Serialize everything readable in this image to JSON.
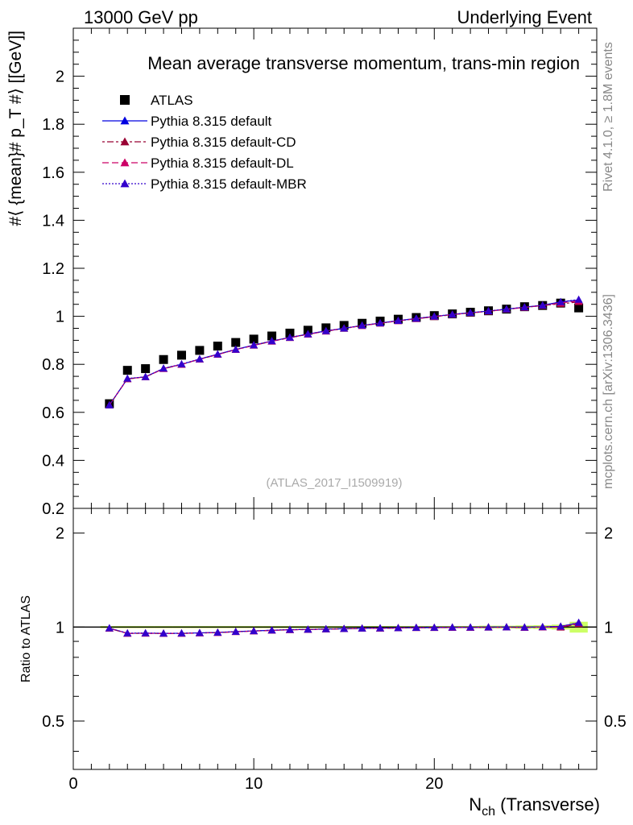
{
  "header": {
    "left_label": "13000 GeV pp",
    "right_label": "Underlying Event"
  },
  "side_labels": {
    "rivet": "Rivet 4.1.0, ≥ 1.8M events",
    "mcplots": "mcplots.cern.ch [arXiv:1306.3436]"
  },
  "chart_data": [
    {
      "type": "line",
      "panel": "main",
      "title": "Mean average transverse momentum, trans-min region",
      "watermark": "(ATLAS_2017_I1509919)",
      "ylabel": "#⟨ {mean}# p_T #⟩ [[GeV]]",
      "ylim": [
        0.2,
        2.2
      ],
      "xlim": [
        0,
        29
      ],
      "yticks": [
        "0.2",
        "0.4",
        "0.6",
        "0.8",
        "1",
        "1.2",
        "1.4",
        "1.6",
        "1.8",
        "2"
      ],
      "x": [
        2,
        3,
        4,
        5,
        6,
        7,
        8,
        9,
        10,
        11,
        12,
        13,
        14,
        15,
        16,
        17,
        18,
        19,
        20,
        21,
        22,
        23,
        24,
        25,
        26,
        27,
        28
      ],
      "series": [
        {
          "name": "ATLAS",
          "color": "#000000",
          "marker": "square",
          "values": [
            0.636,
            0.775,
            0.782,
            0.82,
            0.838,
            0.858,
            0.876,
            0.891,
            0.905,
            0.918,
            0.93,
            0.942,
            0.952,
            0.962,
            0.971,
            0.98,
            0.988,
            0.995,
            1.003,
            1.01,
            1.017,
            1.023,
            1.03,
            1.04,
            1.045,
            1.055,
            1.035
          ]
        },
        {
          "name": "Pythia 8.315 default",
          "color": "#0000e0",
          "marker": "triangle",
          "dash": "",
          "values": [
            0.63,
            0.74,
            0.748,
            0.783,
            0.8,
            0.822,
            0.842,
            0.862,
            0.88,
            0.897,
            0.912,
            0.926,
            0.939,
            0.95,
            0.962,
            0.972,
            0.982,
            0.991,
            0.999,
            1.008,
            1.015,
            1.022,
            1.03,
            1.038,
            1.046,
            1.06,
            1.068
          ]
        },
        {
          "name": "Pythia 8.315 default-CD",
          "color": "#990033",
          "marker": "triangle",
          "dash": "3,3,8,3",
          "values": [
            0.63,
            0.739,
            0.747,
            0.782,
            0.799,
            0.821,
            0.841,
            0.861,
            0.879,
            0.896,
            0.911,
            0.925,
            0.938,
            0.949,
            0.961,
            0.971,
            0.981,
            0.99,
            0.998,
            1.007,
            1.014,
            1.021,
            1.029,
            1.037,
            1.045,
            1.052,
            1.06
          ]
        },
        {
          "name": "Pythia 8.315 default-DL",
          "color": "#cc0066",
          "marker": "triangle",
          "dash": "8,4",
          "values": [
            0.63,
            0.74,
            0.747,
            0.782,
            0.8,
            0.821,
            0.841,
            0.861,
            0.879,
            0.896,
            0.911,
            0.925,
            0.938,
            0.95,
            0.961,
            0.971,
            0.981,
            0.99,
            0.999,
            1.007,
            1.014,
            1.021,
            1.029,
            1.037,
            1.045,
            1.056,
            1.064
          ]
        },
        {
          "name": "Pythia 8.315 default-MBR",
          "color": "#3300cc",
          "marker": "triangle",
          "dash": "2,2",
          "values": [
            0.63,
            0.741,
            0.748,
            0.783,
            0.801,
            0.822,
            0.842,
            0.862,
            0.88,
            0.897,
            0.912,
            0.926,
            0.939,
            0.95,
            0.962,
            0.972,
            0.982,
            0.991,
            1.0,
            1.008,
            1.015,
            1.022,
            1.03,
            1.038,
            1.046,
            1.06,
            1.07
          ]
        }
      ]
    },
    {
      "type": "line",
      "panel": "ratio",
      "ylabel": "Ratio to ATLAS",
      "xlabel": "N_ch (Transverse)",
      "ylim": [
        0.35,
        2.4
      ],
      "yscale": "log",
      "xlim": [
        0,
        29
      ],
      "yticks": [
        "0.5",
        "1",
        "2"
      ],
      "xticks": [
        "0",
        "10",
        "20"
      ],
      "band_color": "#ccff66",
      "x": [
        2,
        3,
        4,
        5,
        6,
        7,
        8,
        9,
        10,
        11,
        12,
        13,
        14,
        15,
        16,
        17,
        18,
        19,
        20,
        21,
        22,
        23,
        24,
        25,
        26,
        27,
        28
      ],
      "band_halfwidth": [
        0.008,
        0.008,
        0.008,
        0.008,
        0.008,
        0.008,
        0.008,
        0.008,
        0.008,
        0.008,
        0.008,
        0.008,
        0.008,
        0.008,
        0.008,
        0.008,
        0.008,
        0.008,
        0.008,
        0.008,
        0.008,
        0.01,
        0.01,
        0.012,
        0.014,
        0.018,
        0.04
      ],
      "series": [
        {
          "name": "Pythia 8.315 default",
          "color": "#0000e0",
          "dash": "",
          "values": [
            0.992,
            0.955,
            0.956,
            0.955,
            0.955,
            0.958,
            0.961,
            0.967,
            0.972,
            0.977,
            0.981,
            0.983,
            0.986,
            0.988,
            0.991,
            0.992,
            0.994,
            0.996,
            0.996,
            0.998,
            0.998,
            0.999,
            1.0,
            0.998,
            1.001,
            1.005,
            1.032
          ]
        },
        {
          "name": "Pythia 8.315 default-CD",
          "color": "#990033",
          "dash": "3,3,8,3",
          "values": [
            0.99,
            0.954,
            0.955,
            0.954,
            0.954,
            0.957,
            0.96,
            0.966,
            0.971,
            0.976,
            0.98,
            0.982,
            0.985,
            0.987,
            0.99,
            0.991,
            0.993,
            0.995,
            0.995,
            0.997,
            0.997,
            0.998,
            0.999,
            0.997,
            1.0,
            0.998,
            1.024
          ]
        },
        {
          "name": "Pythia 8.315 default-DL",
          "color": "#cc0066",
          "dash": "8,4",
          "values": [
            0.991,
            0.955,
            0.955,
            0.954,
            0.955,
            0.957,
            0.96,
            0.966,
            0.971,
            0.976,
            0.98,
            0.982,
            0.985,
            0.988,
            0.99,
            0.991,
            0.993,
            0.995,
            0.996,
            0.997,
            0.997,
            0.998,
            0.999,
            0.997,
            1.0,
            1.001,
            1.028
          ]
        },
        {
          "name": "Pythia 8.315 default-MBR",
          "color": "#3300cc",
          "dash": "2,2",
          "values": [
            0.992,
            0.956,
            0.957,
            0.955,
            0.956,
            0.958,
            0.961,
            0.967,
            0.972,
            0.977,
            0.981,
            0.983,
            0.986,
            0.988,
            0.991,
            0.992,
            0.994,
            0.996,
            0.997,
            0.998,
            0.998,
            0.999,
            1.0,
            0.998,
            1.001,
            1.005,
            1.034
          ]
        }
      ]
    }
  ]
}
